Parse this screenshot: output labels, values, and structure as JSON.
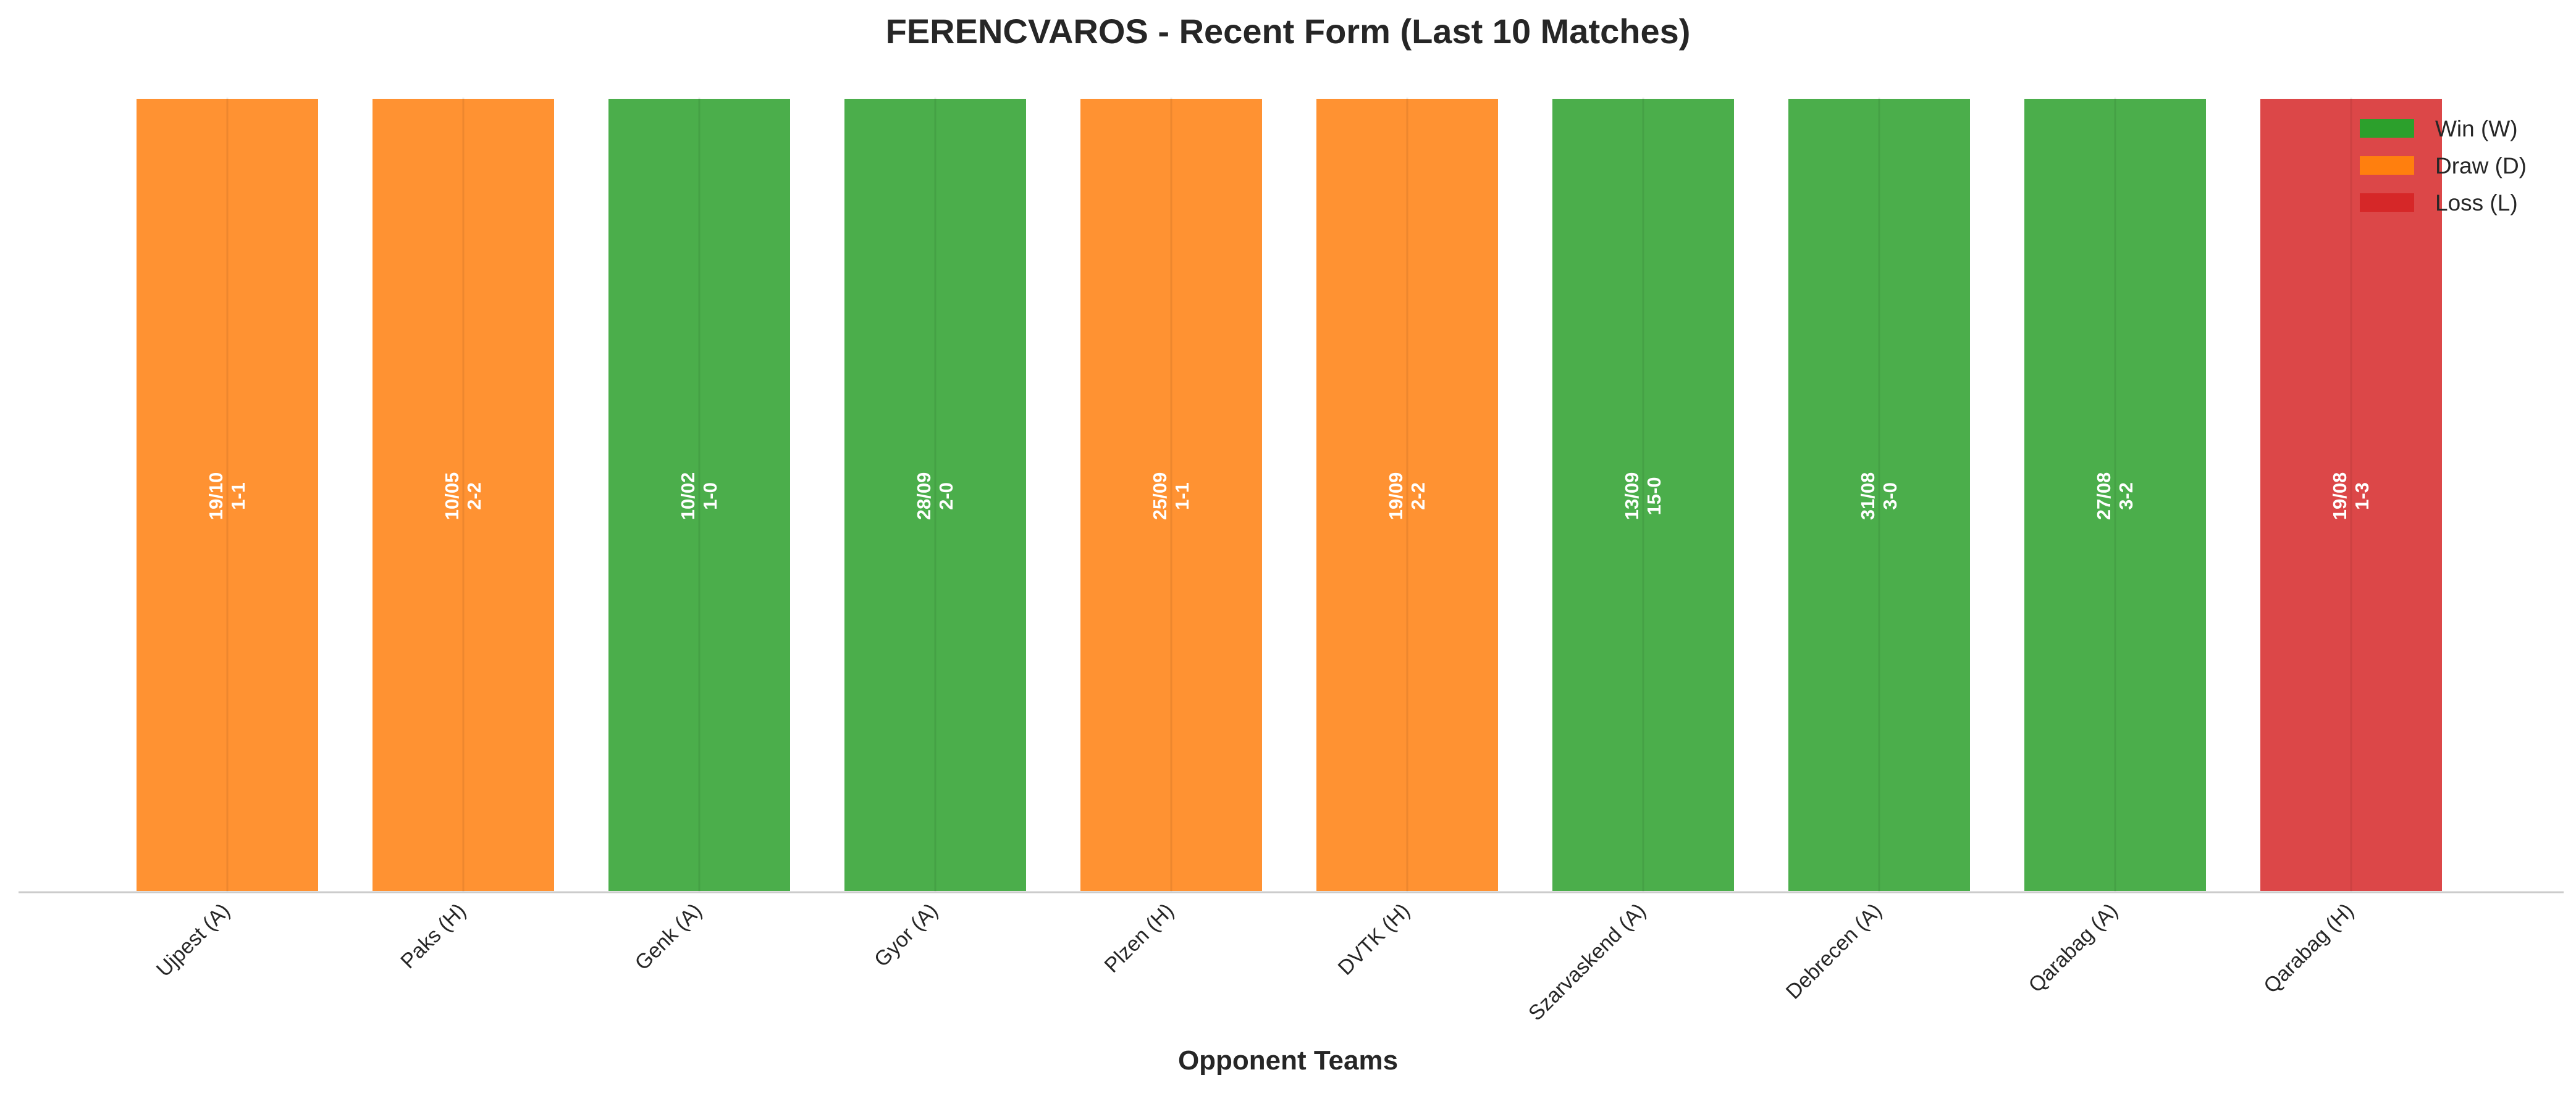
{
  "chart_data": {
    "type": "bar",
    "title": "FERENCVAROS - Recent Form (Last 10 Matches)",
    "xlabel": "Opponent Teams",
    "ylabel": "",
    "categories": [
      "Ujpest (A)",
      "Paks (H)",
      "Genk (A)",
      "Gyor (A)",
      "Plzen (H)",
      "DVTK (H)",
      "Szarvaskend (A)",
      "Debrecen (A)",
      "Qarabag (A)",
      "Qarabag (H)"
    ],
    "values": [
      1,
      1,
      1,
      1,
      1,
      1,
      1,
      1,
      1,
      1
    ],
    "ylim": [
      0,
      1
    ],
    "results": [
      "D",
      "D",
      "W",
      "W",
      "D",
      "D",
      "W",
      "W",
      "W",
      "L"
    ],
    "dates": [
      "19/10",
      "10/05",
      "10/02",
      "28/09",
      "25/09",
      "19/09",
      "13/09",
      "31/08",
      "27/08",
      "19/08"
    ],
    "scores": [
      "1-1",
      "2-2",
      "1-0",
      "2-0",
      "1-1",
      "2-2",
      "15-0",
      "3-0",
      "3-2",
      "1-3"
    ],
    "grid": false,
    "legend": {
      "placement": "top-right",
      "entries": [
        {
          "key": "W",
          "label": "Win (W)",
          "color": "#2ca02c"
        },
        {
          "key": "D",
          "label": "Draw (D)",
          "color": "#ff7f0e"
        },
        {
          "key": "L",
          "label": "Loss (L)",
          "color": "#d62728"
        }
      ]
    }
  }
}
